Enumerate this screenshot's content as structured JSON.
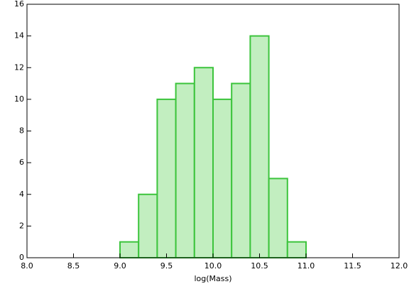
{
  "chart_data": {
    "type": "histogram",
    "x_label": "log(Mass)",
    "bins": [
      9.0,
      9.2,
      9.4,
      9.6,
      9.8,
      10.0,
      10.2,
      10.4,
      10.6,
      10.8,
      11.0
    ],
    "values": [
      1,
      4,
      10,
      11,
      12,
      10,
      11,
      14,
      5,
      1
    ],
    "color": "#c2eec0",
    "edge_color": "#3cc43c",
    "xlim": [
      8.0,
      12.0
    ],
    "xticks": [
      {
        "value": 8.0,
        "label": "8.0"
      },
      8.5,
      {
        "value": 9.0,
        "label": "9.0"
      },
      9.5,
      {
        "value": 10.0,
        "label": "10.0"
      },
      10.5,
      {
        "value": 11.0,
        "label": "11.0"
      },
      11.5,
      {
        "value": 12.0,
        "label": "12.0"
      }
    ],
    "ylim": [
      0,
      16
    ],
    "yticks": [
      0,
      2,
      4,
      6,
      8,
      10,
      12,
      14,
      16
    ]
  }
}
